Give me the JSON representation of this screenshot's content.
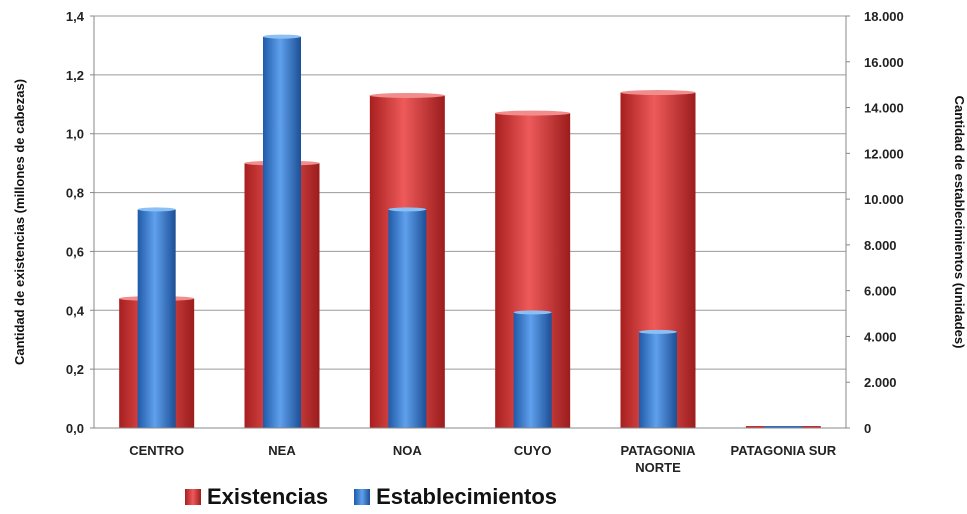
{
  "chart_data": {
    "type": "bar",
    "categories": [
      "CENTRO",
      "NEA",
      "NOA",
      "CUYO",
      "PATAGONIA NORTE",
      "PATAGONIA SUR"
    ],
    "series": [
      {
        "name": "Existencias",
        "axis": "left",
        "values": [
          0.44,
          0.9,
          1.13,
          1.07,
          1.14,
          0.0
        ],
        "color": "#d63b3b"
      },
      {
        "name": "Establecimientos",
        "axis": "right",
        "values": [
          9550,
          17100,
          9550,
          5050,
          4200,
          0
        ],
        "color": "#3a7fd0"
      }
    ],
    "ylabel": "Cantidad de existencias (millones de cabezas)",
    "ylabel_right": "Cantidad de establecimientos (unidades)",
    "ylim": [
      0,
      1.4
    ],
    "ylim_right": [
      0,
      18000
    ],
    "yticks": [
      "0,0",
      "0,2",
      "0,4",
      "0,6",
      "0,8",
      "1,0",
      "1,2",
      "1,4"
    ],
    "yticks_right": [
      "0",
      "2.000",
      "4.000",
      "6.000",
      "8.000",
      "10.000",
      "12.000",
      "14.000",
      "16.000",
      "18.000"
    ],
    "grid": true,
    "legend_position": "bottom-left"
  }
}
